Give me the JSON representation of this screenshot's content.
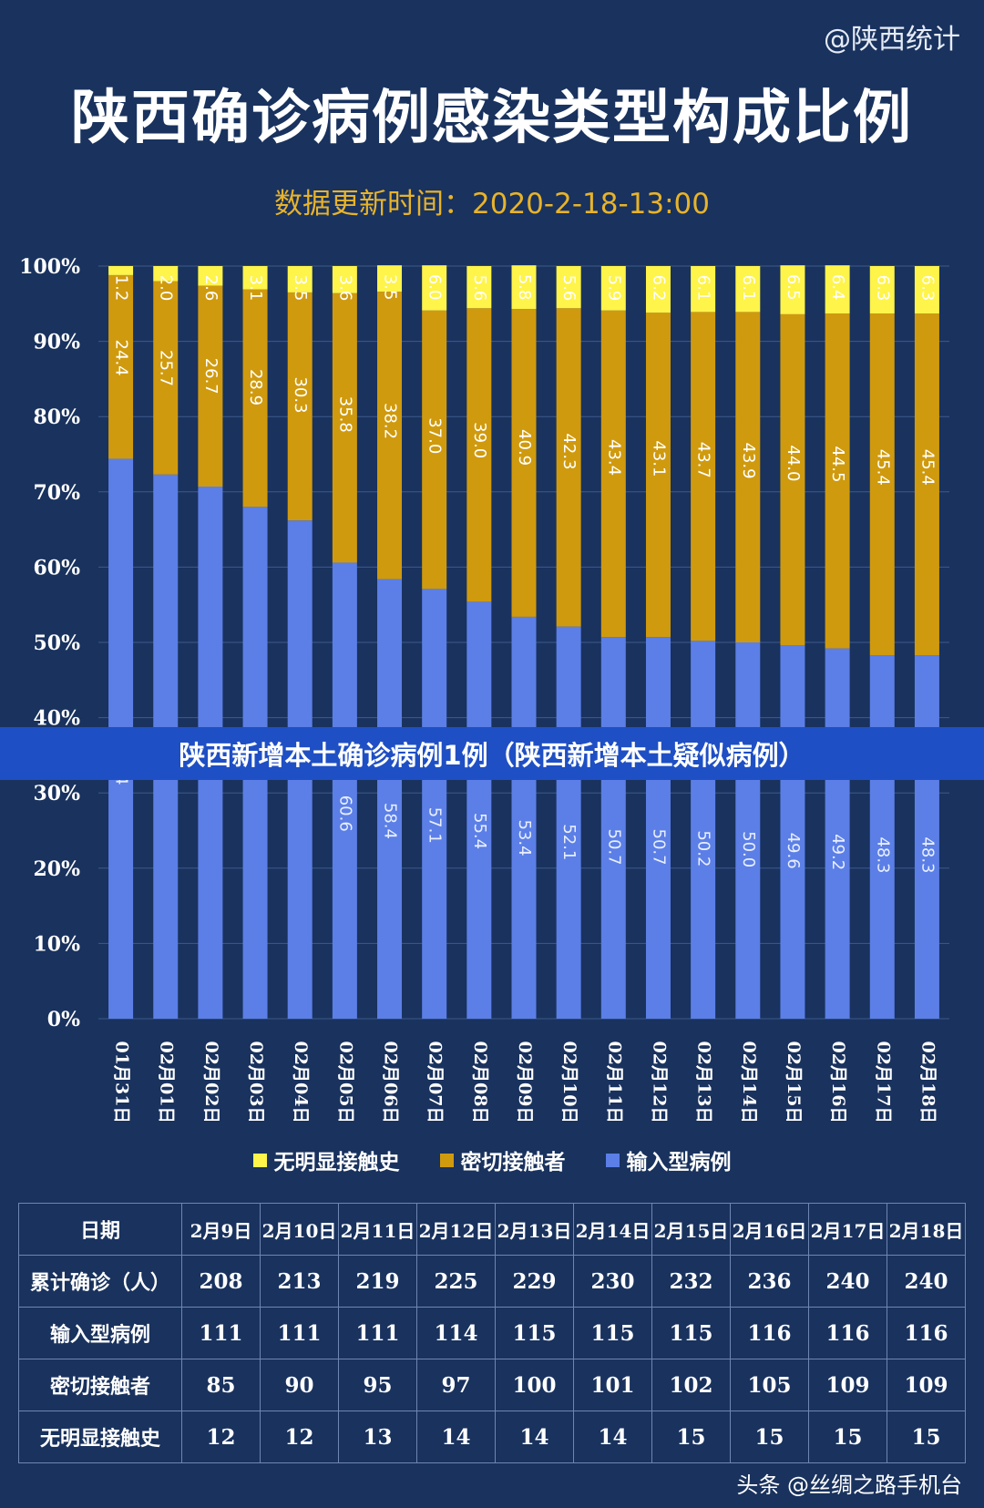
{
  "watermark": "@陕西统计",
  "title": "陕西确诊病例感染类型构成比例",
  "update_time": "数据更新时间：2020-2-18-13:00",
  "banner": "陕西新增本土确诊病例1例（陕西新增本土疑似病例）",
  "footer": "头条 @丝绸之路手机台",
  "colors": {
    "background": "#19325e",
    "imported": "#5b7fe6",
    "close_contact": "#d09a0e",
    "unknown": "#fff44a",
    "title_accent": "#e8b32a"
  },
  "chart_data": {
    "type": "bar",
    "stacked": true,
    "categories": [
      "01月31日",
      "02月01日",
      "02月02日",
      "02月03日",
      "02月04日",
      "02月05日",
      "02月06日",
      "02月07日",
      "02月08日",
      "02月09日",
      "02月10日",
      "02月11日",
      "02月12日",
      "02月13日",
      "02月14日",
      "02月15日",
      "02月16日",
      "02月17日",
      "02月18日"
    ],
    "series": [
      {
        "name": "输入型病例",
        "color": "#5b7fe6",
        "values": [
          74.4,
          72.3,
          70.7,
          68.0,
          66.2,
          60.6,
          58.4,
          57.1,
          55.4,
          53.4,
          52.1,
          50.7,
          50.7,
          50.2,
          50.0,
          49.6,
          49.2,
          48.3,
          48.3
        ],
        "labels": [
          "74.4",
          "",
          "",
          "",
          "",
          "60.6",
          "58.4",
          "57.1",
          "55.4",
          "53.4",
          "52.1",
          "50.7",
          "50.7",
          "50.2",
          "50.0",
          "49.6",
          "49.2",
          "48.3",
          "48.3"
        ]
      },
      {
        "name": "密切接触者",
        "color": "#d09a0e",
        "values": [
          24.4,
          25.7,
          26.7,
          28.9,
          30.3,
          35.8,
          38.2,
          37.0,
          39.0,
          40.9,
          42.3,
          43.4,
          43.1,
          43.7,
          43.9,
          44.0,
          44.5,
          45.4,
          45.4
        ]
      },
      {
        "name": "无明显接触史",
        "color": "#fff44a",
        "values": [
          1.2,
          2.0,
          2.6,
          3.1,
          3.5,
          3.6,
          3.5,
          6.0,
          5.6,
          5.8,
          5.6,
          5.9,
          6.2,
          6.1,
          6.1,
          6.5,
          6.4,
          6.3,
          6.3
        ]
      }
    ],
    "legend_order": [
      "无明显接触史",
      "密切接触者",
      "输入型病例"
    ],
    "y_ticks": [
      "0%",
      "10%",
      "20%",
      "30%",
      "40%",
      "50%",
      "60%",
      "70%",
      "80%",
      "90%",
      "100%"
    ],
    "ylim": [
      0,
      100
    ],
    "grid": true,
    "legend_position": "bottom"
  },
  "table": {
    "header": [
      "日期",
      "2月9日",
      "2月10日",
      "2月11日",
      "2月12日",
      "2月13日",
      "2月14日",
      "2月15日",
      "2月16日",
      "2月17日",
      "2月18日"
    ],
    "rows": [
      [
        "累计确诊（人）",
        "208",
        "213",
        "219",
        "225",
        "229",
        "230",
        "232",
        "236",
        "240",
        "240"
      ],
      [
        "输入型病例",
        "111",
        "111",
        "111",
        "114",
        "115",
        "115",
        "115",
        "116",
        "116",
        "116"
      ],
      [
        "密切接触者",
        "85",
        "90",
        "95",
        "97",
        "100",
        "101",
        "102",
        "105",
        "109",
        "109"
      ],
      [
        "无明显接触史",
        "12",
        "12",
        "13",
        "14",
        "14",
        "14",
        "15",
        "15",
        "15",
        "15"
      ]
    ]
  }
}
